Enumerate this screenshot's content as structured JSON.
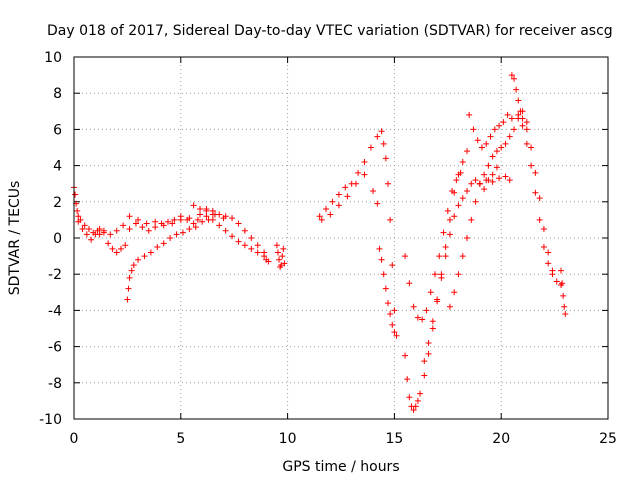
{
  "chart_data": {
    "type": "scatter",
    "title": "Day 018 of 2017, Sidereal Day-to-day VTEC variation (SDTVAR) for receiver ascg",
    "xlabel": "GPS time / hours",
    "ylabel": "SDTVAR / TECUs",
    "xlim": [
      0,
      25
    ],
    "ylim": [
      -10,
      10
    ],
    "xticks": [
      "0",
      "5",
      "10",
      "15",
      "20",
      "25"
    ],
    "yticks": [
      "-10",
      "-8",
      "-6",
      "-4",
      "-2",
      "0",
      "2",
      "4",
      "6",
      "8",
      "10"
    ],
    "grid": true,
    "marker": "+",
    "color": "#ff0000",
    "series": [
      {
        "x": [
          0.0,
          0.05,
          0.1,
          0.15,
          0.2,
          0.3,
          0.5,
          0.7,
          0.9,
          1.1,
          1.2
        ],
        "y": [
          2.8,
          2.4,
          1.9,
          1.5,
          1.2,
          1.0,
          0.7,
          0.5,
          0.3,
          0.4,
          0.2
        ]
      },
      {
        "x": [
          0.2,
          0.4,
          0.6,
          0.8,
          1.0,
          1.2,
          1.4,
          1.6,
          1.8,
          2.0,
          2.2,
          2.4
        ],
        "y": [
          0.9,
          0.5,
          0.2,
          -0.1,
          0.2,
          0.5,
          0.3,
          -0.3,
          -0.6,
          -0.8,
          -0.6,
          -0.4
        ]
      },
      {
        "x": [
          1.4,
          1.7,
          2.0,
          2.3,
          2.6,
          3.0,
          3.4,
          3.8,
          4.2,
          4.6,
          5.0,
          5.4,
          5.8,
          6.2,
          6.6,
          7.0
        ],
        "y": [
          0.4,
          0.2,
          0.4,
          0.7,
          1.2,
          1.0,
          0.8,
          0.9,
          0.7,
          0.8,
          1.0,
          1.1,
          1.0,
          1.2,
          1.3,
          1.1
        ]
      },
      {
        "x": [
          2.5,
          2.55,
          2.6,
          2.7,
          2.8,
          3.0,
          3.3,
          3.6,
          3.9,
          4.2,
          4.5,
          4.8,
          5.1,
          5.4,
          5.7,
          6.0,
          6.3
        ],
        "y": [
          -3.4,
          -2.8,
          -2.2,
          -1.8,
          -1.5,
          -1.2,
          -1.0,
          -0.8,
          -0.5,
          -0.3,
          0.0,
          0.2,
          0.3,
          0.5,
          0.6,
          0.9,
          1.0
        ]
      },
      {
        "x": [
          2.6,
          2.9,
          3.2,
          3.5,
          3.8,
          4.1,
          4.4,
          4.7,
          5.0,
          5.3,
          5.6,
          5.9,
          6.2,
          6.5
        ],
        "y": [
          0.5,
          0.8,
          0.6,
          0.4,
          0.6,
          0.8,
          0.9,
          1.0,
          1.2,
          1.0,
          0.8,
          1.3,
          1.6,
          1.5
        ]
      },
      {
        "x": [
          5.6,
          5.9,
          6.2,
          6.5,
          6.8,
          7.1,
          7.4,
          7.7,
          8.0,
          8.3,
          8.6,
          8.9,
          9.1
        ],
        "y": [
          1.8,
          1.6,
          1.5,
          1.3,
          1.3,
          1.2,
          1.1,
          0.8,
          0.4,
          0.0,
          -0.4,
          -0.8,
          -1.3
        ]
      },
      {
        "x": [
          6.5,
          6.8,
          7.1,
          7.4,
          7.7,
          8.0,
          8.3,
          8.6,
          8.9,
          9.0
        ],
        "y": [
          1.0,
          0.7,
          0.4,
          0.1,
          -0.2,
          -0.4,
          -0.6,
          -0.8,
          -1.0,
          -1.2
        ]
      },
      {
        "x": [
          9.5,
          9.55,
          9.6,
          9.65,
          9.7,
          9.75,
          9.8,
          9.85
        ],
        "y": [
          -0.4,
          -0.8,
          -1.2,
          -1.6,
          -1.5,
          -1.0,
          -0.6,
          -1.4
        ]
      },
      {
        "x": [
          11.5,
          11.8,
          12.1,
          12.4,
          12.7,
          13.0,
          13.3,
          13.6,
          13.9,
          14.2,
          14.4,
          14.5,
          14.6,
          14.7,
          14.8,
          14.9,
          15.0
        ],
        "y": [
          1.2,
          1.6,
          2.0,
          2.4,
          2.8,
          3.0,
          3.6,
          4.2,
          5.0,
          5.6,
          5.9,
          5.2,
          4.4,
          3.0,
          1.0,
          -1.5,
          -4.0
        ]
      },
      {
        "x": [
          11.6,
          12.0,
          12.4,
          12.8,
          13.2,
          13.6,
          14.0,
          14.2
        ],
        "y": [
          1.0,
          1.3,
          1.8,
          2.3,
          3.0,
          3.5,
          2.6,
          1.9
        ]
      },
      {
        "x": [
          14.3,
          14.4,
          14.5,
          14.6,
          14.7,
          14.8,
          14.9,
          15.0,
          15.1
        ],
        "y": [
          -0.6,
          -1.2,
          -2.0,
          -2.8,
          -3.6,
          -4.2,
          -4.8,
          -5.2,
          -5.4
        ]
      },
      {
        "x": [
          15.5,
          15.6,
          15.7,
          15.8,
          15.9,
          16.0,
          16.1,
          16.2,
          16.4,
          16.6,
          16.8,
          17.0,
          17.2,
          17.4,
          17.6,
          17.8,
          18.0,
          18.2,
          18.4
        ],
        "y": [
          -6.5,
          -7.8,
          -8.8,
          -9.3,
          -9.5,
          -9.3,
          -9.0,
          -8.6,
          -7.6,
          -6.4,
          -5.0,
          -3.5,
          -2.0,
          -0.5,
          1.0,
          2.5,
          3.5,
          4.2,
          4.8
        ]
      },
      {
        "x": [
          15.5,
          15.7,
          15.9,
          16.1,
          16.3,
          16.5,
          16.7,
          16.9,
          17.1,
          17.3,
          17.5,
          17.7,
          17.9,
          18.1
        ],
        "y": [
          -1.0,
          -2.5,
          -3.8,
          -4.4,
          -4.5,
          -4.0,
          -3.0,
          -2.0,
          -1.0,
          0.3,
          1.5,
          2.6,
          3.2,
          3.6
        ]
      },
      {
        "x": [
          16.4,
          16.6,
          16.8,
          17.0,
          17.2,
          17.4,
          17.6,
          17.8,
          18.0,
          18.2,
          18.4,
          18.6,
          18.8,
          19.0,
          19.2,
          19.4,
          19.6,
          19.8
        ],
        "y": [
          -6.8,
          -5.8,
          -4.6,
          -3.4,
          -2.2,
          -1.0,
          0.2,
          1.2,
          1.8,
          2.2,
          2.6,
          3.0,
          3.2,
          3.0,
          2.7,
          3.2,
          3.5,
          3.9
        ]
      },
      {
        "x": [
          17.6,
          17.8,
          18.0,
          18.2,
          18.4,
          18.6,
          18.8,
          19.0,
          19.2,
          19.4,
          19.6,
          19.8,
          20.0,
          20.2,
          20.4,
          20.6,
          20.8,
          21.0,
          21.2
        ],
        "y": [
          -3.8,
          -3.0,
          -2.0,
          -1.0,
          0.0,
          1.0,
          2.0,
          3.0,
          3.5,
          4.0,
          4.5,
          4.8,
          5.0,
          5.2,
          5.6,
          6.0,
          6.6,
          7.0,
          6.4
        ]
      },
      {
        "x": [
          18.5,
          18.7,
          18.9,
          19.1,
          19.3,
          19.5,
          19.7,
          19.9,
          20.1,
          20.3,
          20.5
        ],
        "y": [
          6.8,
          6.0,
          5.4,
          5.0,
          5.2,
          5.6,
          6.0,
          6.2,
          6.4,
          6.8,
          6.6
        ]
      },
      {
        "x": [
          19.0,
          19.3,
          19.6,
          19.9,
          20.2,
          20.4
        ],
        "y": [
          3.0,
          3.2,
          3.1,
          3.3,
          3.4,
          3.2
        ]
      },
      {
        "x": [
          20.5,
          20.6,
          20.7,
          20.8,
          20.9,
          21.0,
          21.2,
          21.4,
          21.6,
          21.8,
          22.0,
          22.2,
          22.4,
          22.6,
          22.8
        ],
        "y": [
          9.0,
          8.8,
          8.2,
          7.6,
          7.0,
          6.2,
          5.2,
          4.0,
          2.5,
          1.0,
          -0.5,
          -1.4,
          -2.0,
          -2.4,
          -2.6
        ]
      },
      {
        "x": [
          20.8,
          21.0,
          21.2,
          21.4,
          21.6,
          21.8,
          22.0,
          22.2,
          22.4
        ],
        "y": [
          6.8,
          6.6,
          6.0,
          5.0,
          3.6,
          2.2,
          0.5,
          -0.8,
          -1.8
        ]
      },
      {
        "x": [
          22.8,
          22.85,
          22.9,
          22.95,
          23.0
        ],
        "y": [
          -1.8,
          -2.5,
          -3.2,
          -3.8,
          -4.2
        ]
      }
    ]
  }
}
